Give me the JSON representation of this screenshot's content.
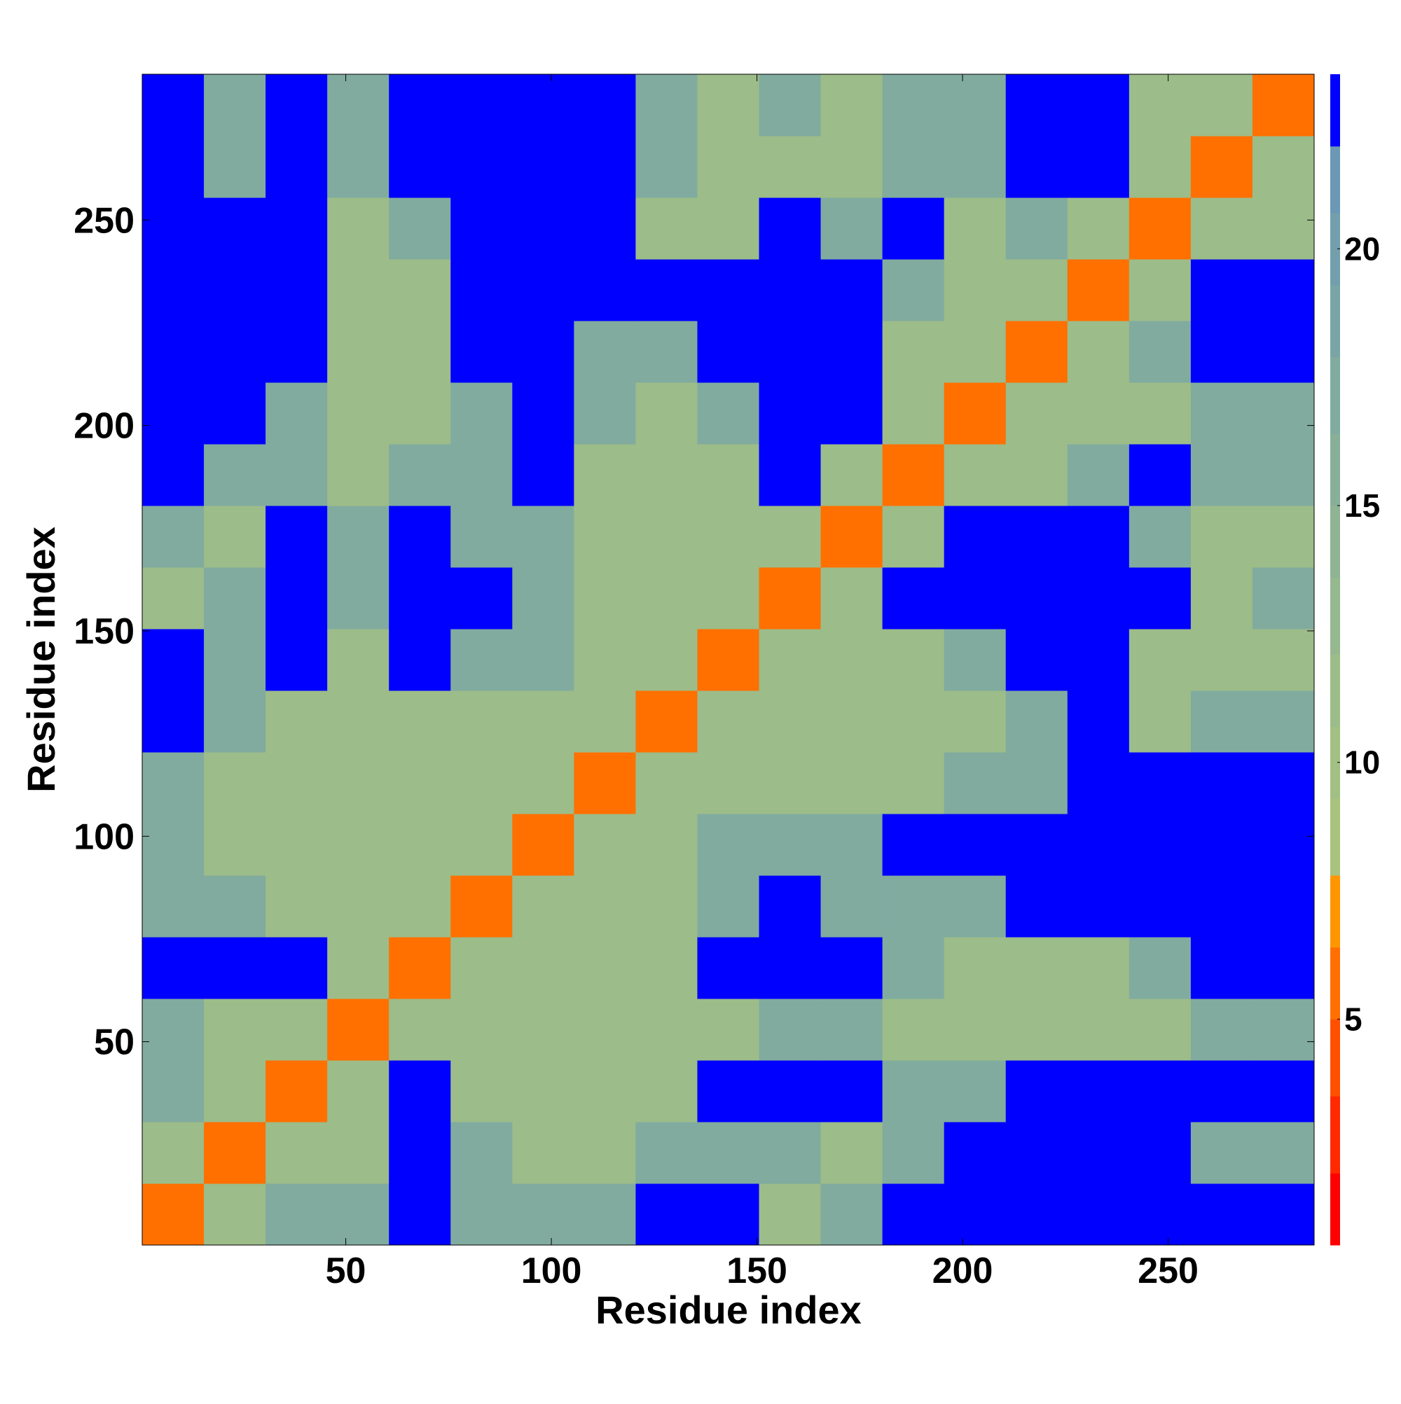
{
  "chart_data": {
    "type": "heatmap",
    "xlabel": "Residue index",
    "ylabel": "Residue index",
    "xlim": [
      0.5,
      285.5
    ],
    "ylim": [
      0.5,
      285.5
    ],
    "xticks": [
      50,
      100,
      150,
      200,
      250
    ],
    "yticks": [
      50,
      100,
      150,
      200,
      250
    ],
    "bin_edges": [
      0.5,
      15.5,
      30.5,
      45.5,
      60.5,
      75.5,
      90.5,
      105.5,
      120.5,
      135.5,
      150.5,
      165.5,
      180.5,
      195.5,
      210.5,
      225.5,
      240.5,
      255.5,
      270.5,
      285.5
    ],
    "values": [
      [
        6,
        12,
        17,
        17,
        23,
        17,
        17,
        17,
        23,
        23,
        12,
        17,
        23,
        23,
        23,
        23,
        23,
        23,
        23
      ],
      [
        12,
        6,
        12,
        12,
        23,
        17,
        12,
        12,
        17,
        17,
        17,
        12,
        17,
        23,
        23,
        23,
        23,
        17,
        17
      ],
      [
        17,
        12,
        6,
        12,
        23,
        12,
        12,
        12,
        12,
        23,
        23,
        23,
        17,
        17,
        23,
        23,
        23,
        23,
        23
      ],
      [
        17,
        12,
        12,
        6,
        12,
        12,
        12,
        12,
        12,
        12,
        17,
        17,
        12,
        12,
        12,
        12,
        12,
        17,
        17
      ],
      [
        23,
        23,
        23,
        12,
        6,
        12,
        12,
        12,
        12,
        23,
        23,
        23,
        17,
        12,
        12,
        12,
        17,
        23,
        23
      ],
      [
        17,
        17,
        12,
        12,
        12,
        6,
        12,
        12,
        12,
        17,
        23,
        17,
        17,
        17,
        23,
        23,
        23,
        23,
        23
      ],
      [
        17,
        12,
        12,
        12,
        12,
        12,
        6,
        12,
        12,
        17,
        17,
        17,
        23,
        23,
        23,
        23,
        23,
        23,
        23
      ],
      [
        17,
        12,
        12,
        12,
        12,
        12,
        12,
        6,
        12,
        12,
        12,
        12,
        12,
        17,
        17,
        23,
        23,
        23,
        23
      ],
      [
        23,
        17,
        12,
        12,
        12,
        12,
        12,
        12,
        6,
        12,
        12,
        12,
        12,
        12,
        17,
        23,
        12,
        17,
        17
      ],
      [
        23,
        17,
        23,
        12,
        23,
        17,
        17,
        12,
        12,
        6,
        12,
        12,
        12,
        17,
        23,
        23,
        12,
        12,
        12
      ],
      [
        12,
        17,
        23,
        17,
        23,
        23,
        17,
        12,
        12,
        12,
        6,
        12,
        23,
        23,
        23,
        23,
        23,
        12,
        17
      ],
      [
        17,
        12,
        23,
        17,
        23,
        17,
        17,
        12,
        12,
        12,
        12,
        6,
        12,
        23,
        23,
        23,
        17,
        12,
        12
      ],
      [
        23,
        17,
        17,
        12,
        17,
        17,
        23,
        12,
        12,
        12,
        23,
        12,
        6,
        12,
        12,
        17,
        23,
        17,
        17
      ],
      [
        23,
        23,
        17,
        12,
        12,
        17,
        23,
        17,
        12,
        17,
        23,
        23,
        12,
        6,
        12,
        12,
        12,
        17,
        17
      ],
      [
        23,
        23,
        23,
        12,
        12,
        23,
        23,
        17,
        17,
        23,
        23,
        23,
        12,
        12,
        6,
        12,
        17,
        23,
        23
      ],
      [
        23,
        23,
        23,
        12,
        12,
        23,
        23,
        23,
        23,
        23,
        23,
        23,
        17,
        12,
        12,
        6,
        12,
        23,
        23
      ],
      [
        23,
        23,
        23,
        12,
        17,
        23,
        23,
        23,
        12,
        12,
        23,
        17,
        23,
        12,
        17,
        12,
        6,
        12,
        12
      ],
      [
        23,
        17,
        23,
        17,
        23,
        23,
        23,
        23,
        17,
        12,
        12,
        12,
        17,
        17,
        23,
        23,
        12,
        6,
        12
      ],
      [
        23,
        17,
        23,
        17,
        23,
        23,
        23,
        23,
        17,
        12,
        17,
        12,
        17,
        17,
        23,
        23,
        12,
        12,
        6
      ]
    ],
    "color_levels": [
      0.6,
      2,
      3.5,
      5,
      6.4,
      7.8,
      9.3,
      10.7,
      12.1,
      13.6,
      15,
      16.4,
      17.9,
      19.3,
      20.7,
      22,
      23.4
    ],
    "level_colors": [
      "#ff0000",
      "#ff2a00",
      "#ff5000",
      "#ff7000",
      "#ff9600",
      "#a9c27e",
      "#a2bf84",
      "#9cbc89",
      "#95b88e",
      "#8eb493",
      "#88b099",
      "#81ab9f",
      "#7aa5a6",
      "#739fad",
      "#6b98b4",
      "#0000ff"
    ],
    "colorbar_ticks": [
      5,
      10,
      15,
      20
    ]
  }
}
